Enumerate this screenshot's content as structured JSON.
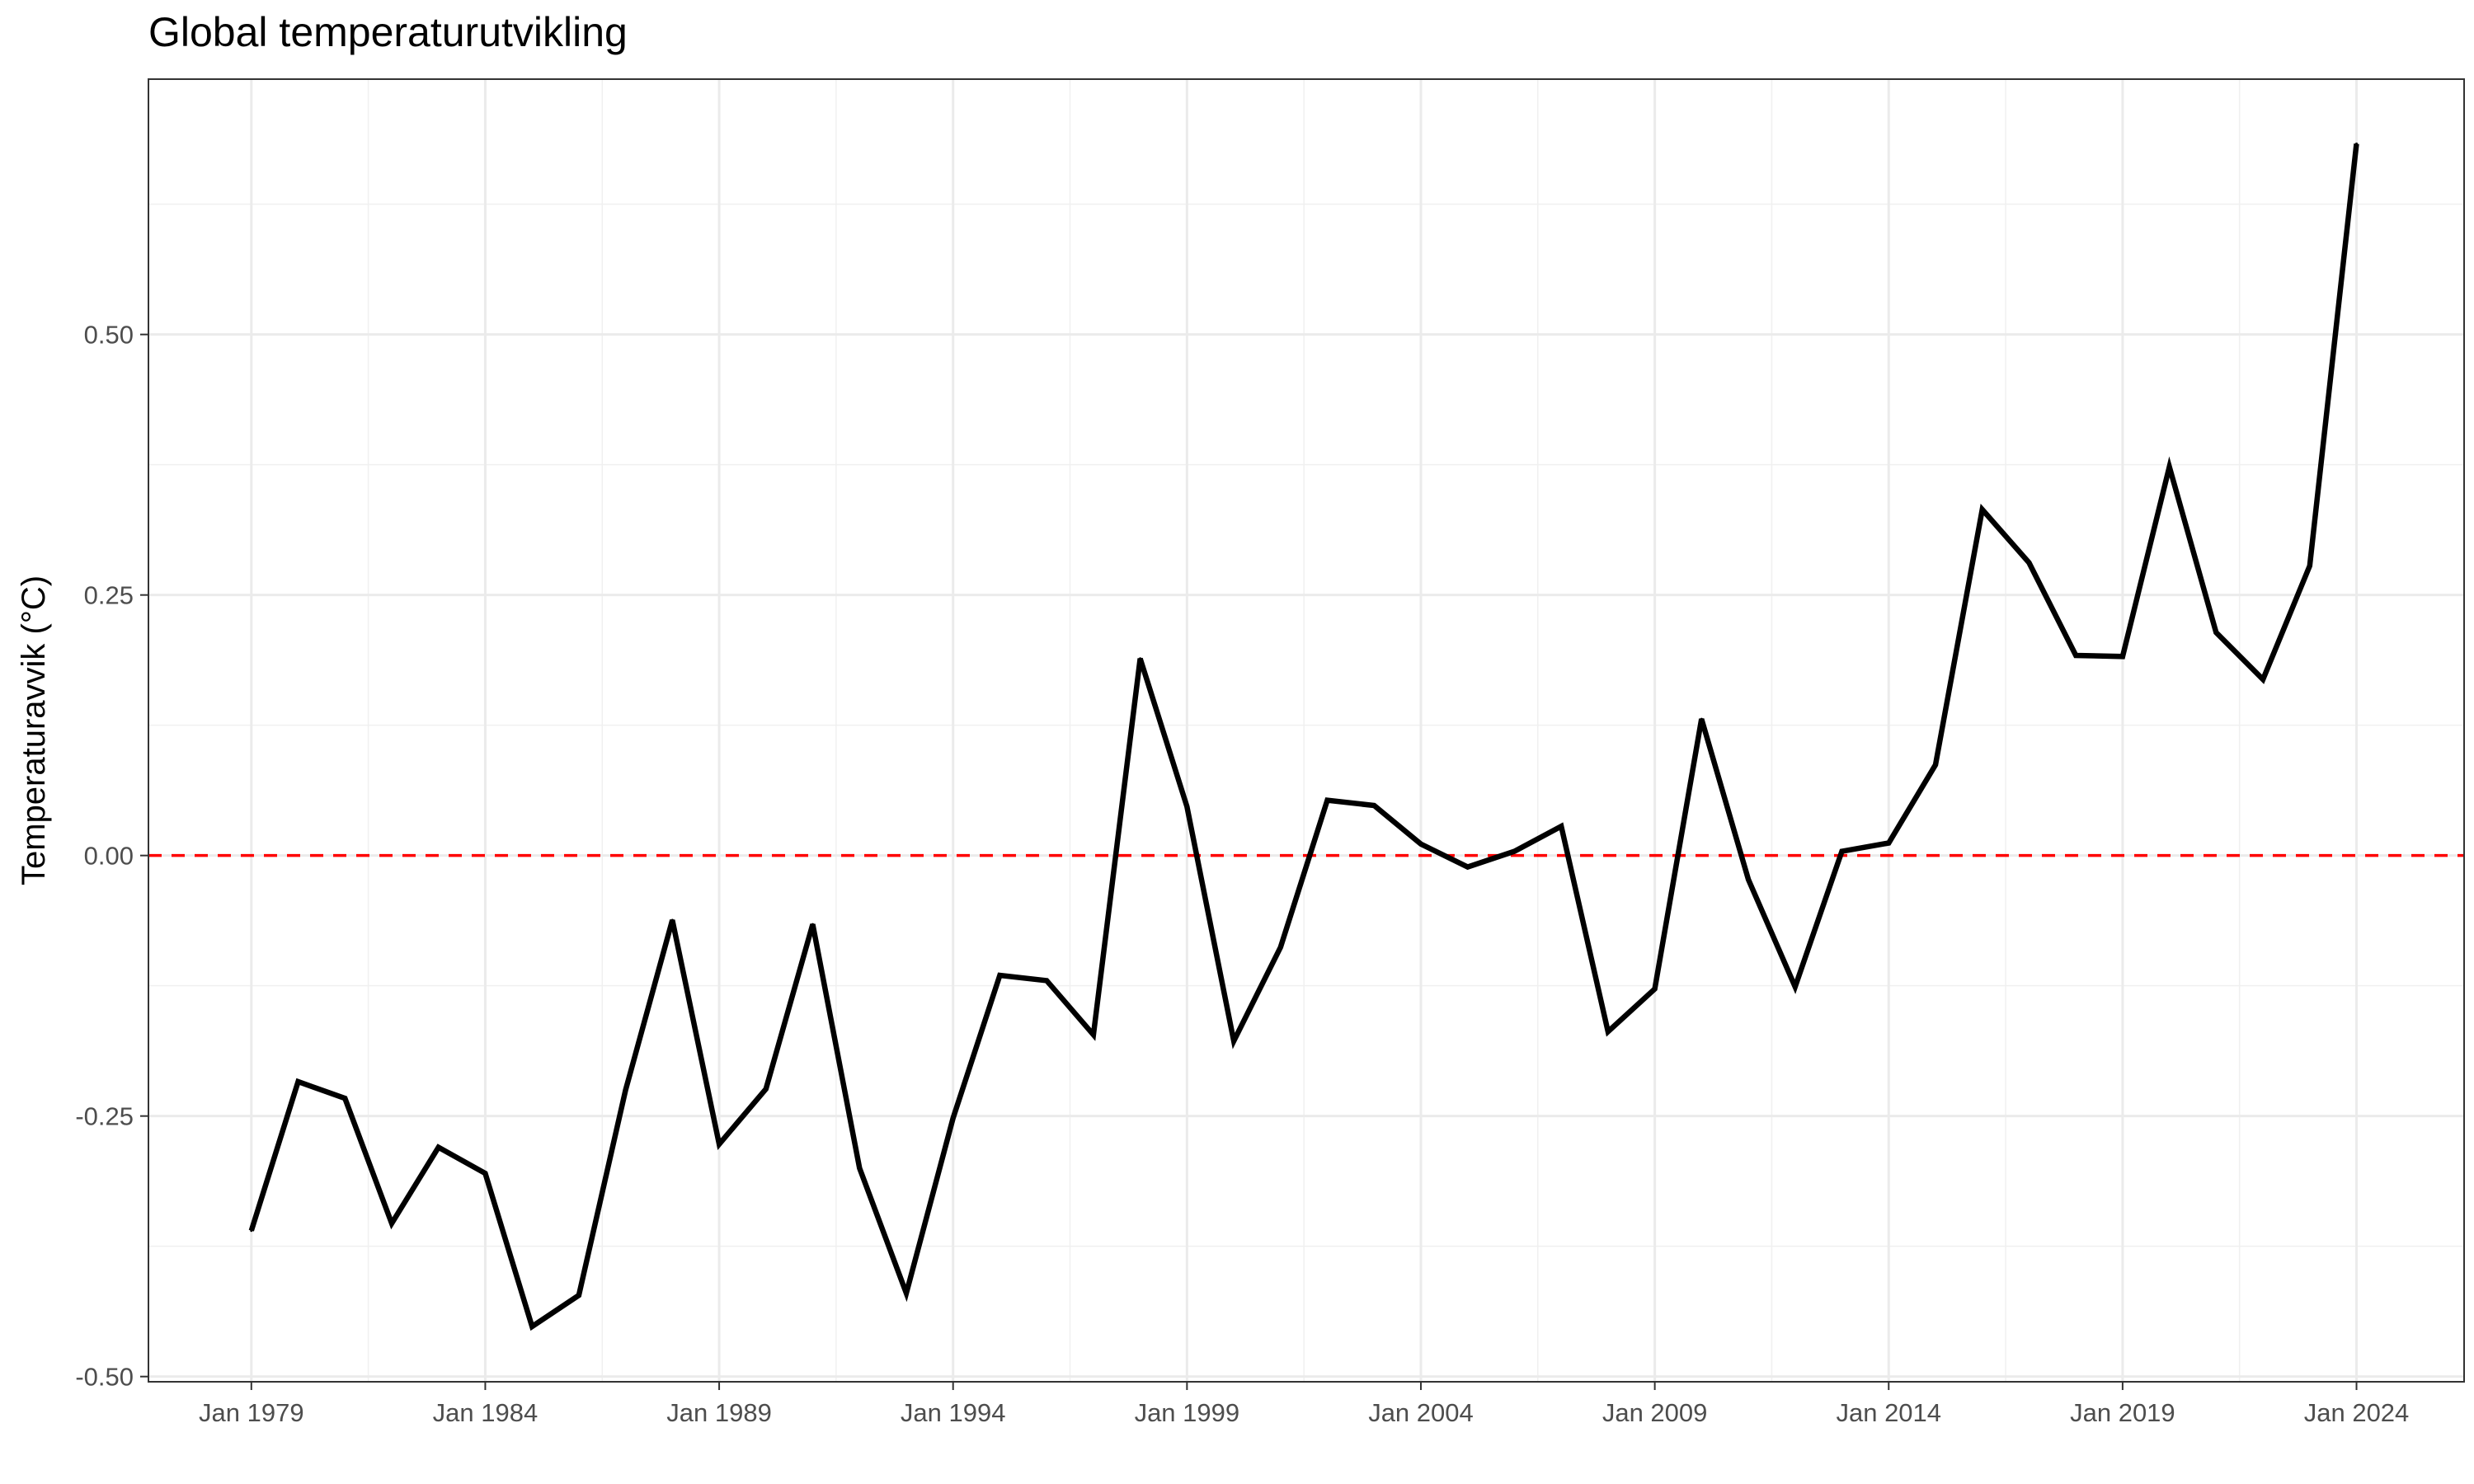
{
  "chart_data": {
    "type": "line",
    "title": "Global temperaturutvikling",
    "xlabel": "",
    "ylabel": "Temperaturavvik (°C)",
    "x_tick_labels": [
      "Jan 1979",
      "Jan 1984",
      "Jan 1989",
      "Jan 1994",
      "Jan 1999",
      "Jan 2004",
      "Jan 2009",
      "Jan 2014",
      "Jan 2019",
      "Jan 2024"
    ],
    "y_tick_labels": [
      "-0.50",
      "-0.25",
      "0.00",
      "0.25",
      "0.50"
    ],
    "xlim": [
      1976.8,
      2026.3
    ],
    "ylim": [
      -0.505,
      0.745
    ],
    "grid": true,
    "reference_line": {
      "y": 0.0,
      "style": "dashed",
      "color": "#ff0000"
    },
    "series": [
      {
        "color": "#000000",
        "x": [
          1979,
          1980,
          1981,
          1982,
          1983,
          1984,
          1985,
          1986,
          1987,
          1988,
          1989,
          1990,
          1991,
          1992,
          1993,
          1994,
          1995,
          1996,
          1997,
          1998,
          1999,
          2000,
          2001,
          2002,
          2003,
          2004,
          2005,
          2006,
          2007,
          2008,
          2009,
          2010,
          2011,
          2012,
          2013,
          2014,
          2015,
          2016,
          2017,
          2018,
          2019,
          2020,
          2021,
          2022,
          2023,
          2024
        ],
        "values": [
          -0.36,
          -0.217,
          -0.233,
          -0.353,
          -0.28,
          -0.305,
          -0.452,
          -0.422,
          -0.225,
          -0.062,
          -0.277,
          -0.224,
          -0.066,
          -0.3,
          -0.42,
          -0.252,
          -0.115,
          -0.12,
          -0.172,
          0.189,
          0.047,
          -0.178,
          -0.088,
          0.053,
          0.048,
          0.011,
          -0.011,
          0.004,
          0.028,
          -0.169,
          -0.128,
          0.131,
          -0.023,
          -0.126,
          0.004,
          0.012,
          0.087,
          0.332,
          0.281,
          0.192,
          0.191,
          0.373,
          0.214,
          0.169,
          0.278,
          0.683
        ]
      }
    ]
  }
}
